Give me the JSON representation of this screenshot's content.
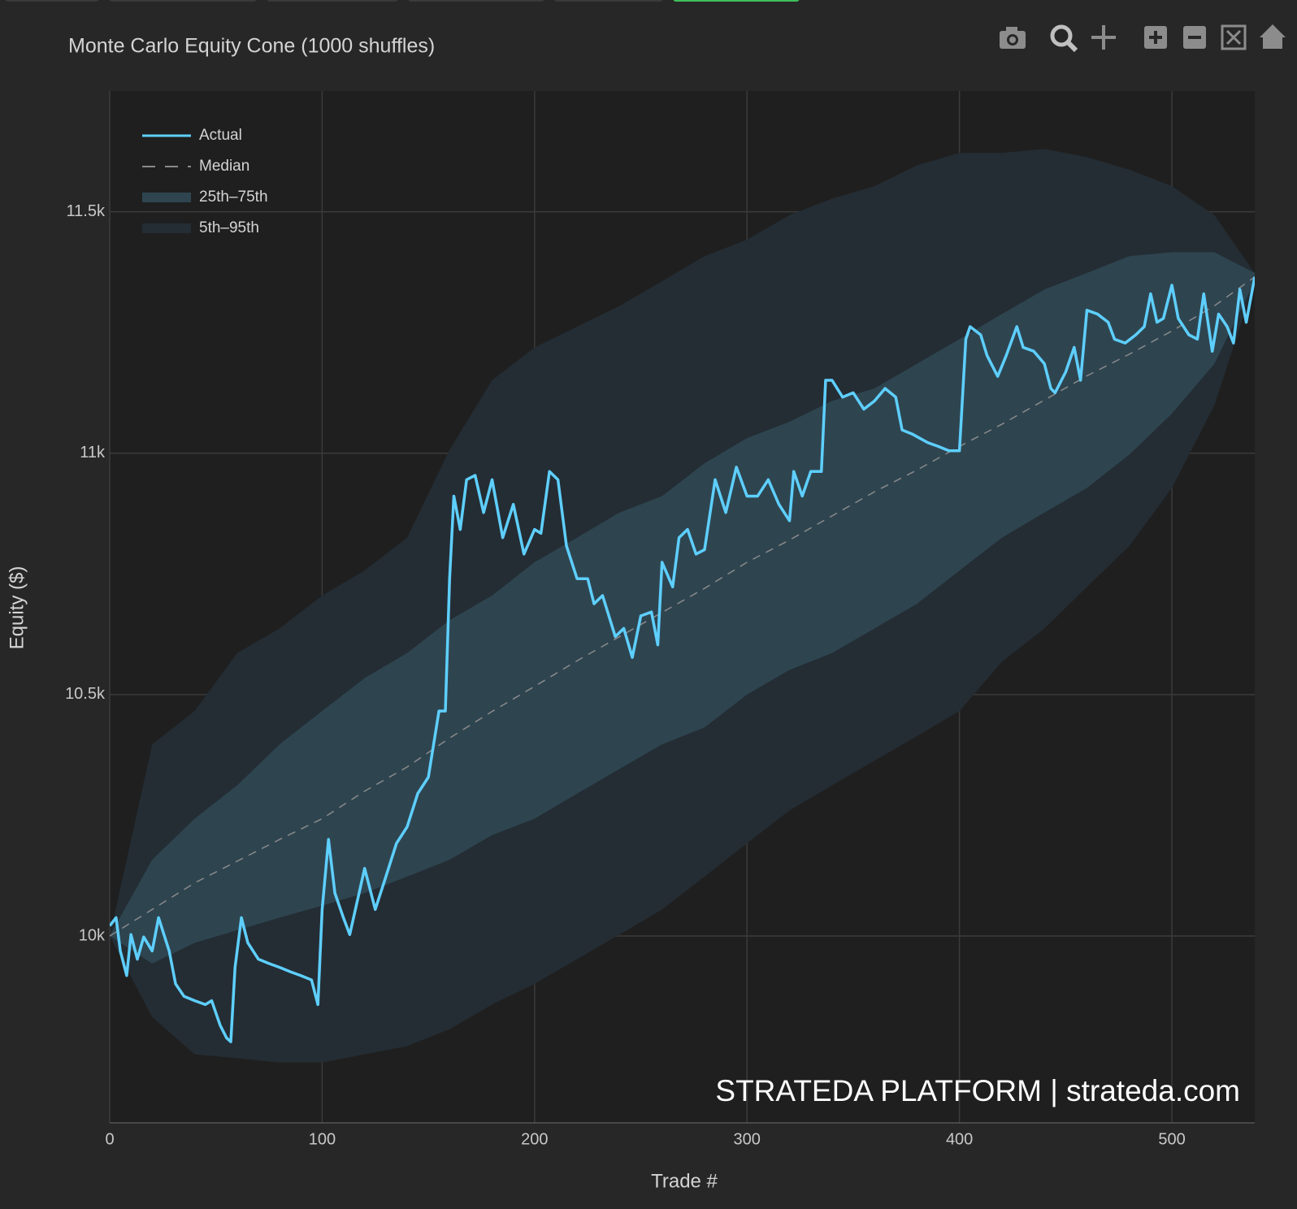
{
  "chart_data": {
    "type": "line",
    "title": "Monte Carlo Equity Cone (1000 shuffles)",
    "x_label": "Trade #",
    "y_label": "Equity ($)",
    "annotation": "STRATEDA PLATFORM | strateda.com",
    "xlim": [
      0,
      539
    ],
    "ylim": [
      9613,
      11750
    ],
    "xticks": [
      0,
      100,
      200,
      300,
      400,
      500
    ],
    "yticks": [
      {
        "value": 10000,
        "label": "10k"
      },
      {
        "value": 10500,
        "label": "10.5k"
      },
      {
        "value": 11000,
        "label": "11k"
      },
      {
        "value": 11500,
        "label": "11.5k"
      }
    ],
    "grid": true,
    "legend": "top-left",
    "series": [
      {
        "name": "Actual",
        "color": "#5ecfff",
        "dash": false,
        "x": [
          0,
          3,
          5,
          8,
          10,
          13,
          16,
          20,
          23,
          28,
          31,
          35,
          40,
          45,
          48,
          52,
          55,
          57,
          59,
          62,
          65,
          70,
          75,
          80,
          85,
          90,
          95,
          98,
          100,
          103,
          106,
          110,
          113,
          120,
          125,
          130,
          135,
          140,
          145,
          150,
          155,
          158,
          160,
          162,
          165,
          168,
          172,
          176,
          180,
          185,
          190,
          195,
          200,
          203,
          207,
          211,
          215,
          220,
          225,
          228,
          232,
          238,
          242,
          246,
          250,
          255,
          258,
          260,
          265,
          268,
          272,
          276,
          280,
          285,
          290,
          295,
          300,
          305,
          310,
          315,
          320,
          322,
          326,
          330,
          335,
          337,
          340,
          345,
          350,
          355,
          360,
          365,
          370,
          373,
          378,
          385,
          390,
          395,
          398,
          400,
          403,
          405,
          410,
          413,
          418,
          422,
          427,
          430,
          435,
          440,
          443,
          445,
          450,
          454,
          457,
          460,
          465,
          470,
          473,
          478,
          483,
          487,
          490,
          493,
          496,
          500,
          503,
          508,
          512,
          515,
          519,
          522,
          526,
          529,
          532,
          535,
          539
        ],
        "values": [
          10021,
          10038,
          9969,
          9918,
          10003,
          9952,
          9998,
          9969,
          10038,
          9969,
          9901,
          9875,
          9866,
          9858,
          9866,
          9815,
          9789,
          9781,
          9935,
          10038,
          9986,
          9952,
          9943,
          9935,
          9926,
          9918,
          9909,
          9858,
          10055,
          10200,
          10089,
          10038,
          10003,
          10140,
          10055,
          10123,
          10192,
          10226,
          10295,
          10329,
          10466,
          10466,
          10740,
          10911,
          10842,
          10945,
          10954,
          10877,
          10945,
          10825,
          10894,
          10791,
          10842,
          10834,
          10962,
          10945,
          10808,
          10740,
          10740,
          10688,
          10705,
          10620,
          10637,
          10577,
          10663,
          10671,
          10603,
          10774,
          10723,
          10825,
          10842,
          10791,
          10800,
          10945,
          10877,
          10971,
          10911,
          10911,
          10945,
          10894,
          10860,
          10962,
          10911,
          10962,
          10962,
          11151,
          11151,
          11116,
          11125,
          11091,
          11108,
          11134,
          11116,
          11048,
          11039,
          11022,
          11014,
          11005,
          11005,
          11005,
          11236,
          11262,
          11245,
          11202,
          11159,
          11202,
          11262,
          11219,
          11211,
          11185,
          11134,
          11125,
          11168,
          11219,
          11151,
          11296,
          11288,
          11271,
          11236,
          11228,
          11245,
          11262,
          11330,
          11271,
          11279,
          11348,
          11279,
          11245,
          11236,
          11330,
          11211,
          11288,
          11262,
          11228,
          11339,
          11271,
          11365
        ]
      },
      {
        "name": "Median",
        "color": "#8a8a8a",
        "dash": true,
        "x": [
          0,
          20,
          40,
          60,
          80,
          100,
          120,
          140,
          160,
          180,
          200,
          220,
          240,
          260,
          280,
          300,
          320,
          340,
          360,
          380,
          400,
          420,
          440,
          460,
          480,
          500,
          520,
          539
        ],
        "values": [
          10000,
          10055,
          10110,
          10155,
          10200,
          10243,
          10300,
          10350,
          10410,
          10465,
          10517,
          10570,
          10620,
          10670,
          10720,
          10774,
          10820,
          10870,
          10920,
          10965,
          11014,
          11060,
          11110,
          11160,
          11205,
          11253,
          11305,
          11365
        ]
      }
    ],
    "bands": [
      {
        "name": "25th–75th",
        "color": "#2e4550",
        "x": [
          0,
          20,
          40,
          60,
          80,
          100,
          120,
          140,
          160,
          180,
          200,
          220,
          240,
          260,
          280,
          300,
          320,
          340,
          360,
          380,
          400,
          420,
          440,
          460,
          480,
          500,
          520,
          539
        ],
        "lower": [
          10000,
          9943,
          9986,
          10012,
          10038,
          10063,
          10089,
          10123,
          10158,
          10209,
          10243,
          10295,
          10346,
          10397,
          10432,
          10500,
          10551,
          10586,
          10637,
          10688,
          10757,
          10825,
          10877,
          10928,
          10997,
          11082,
          11185,
          11356
        ],
        "upper": [
          10000,
          10158,
          10243,
          10312,
          10397,
          10466,
          10534,
          10586,
          10654,
          10705,
          10774,
          10825,
          10877,
          10911,
          10979,
          11031,
          11065,
          11108,
          11134,
          11185,
          11236,
          11288,
          11339,
          11373,
          11408,
          11416,
          11416,
          11373
        ]
      },
      {
        "name": "5th–95th",
        "color": "#242d34",
        "x": [
          0,
          20,
          40,
          60,
          80,
          100,
          120,
          140,
          160,
          180,
          200,
          220,
          240,
          260,
          280,
          300,
          320,
          340,
          360,
          380,
          400,
          420,
          440,
          460,
          480,
          500,
          520,
          539
        ],
        "lower": [
          10000,
          9832,
          9755,
          9747,
          9738,
          9738,
          9755,
          9772,
          9807,
          9858,
          9901,
          9952,
          10003,
          10055,
          10123,
          10192,
          10260,
          10312,
          10363,
          10414,
          10466,
          10568,
          10637,
          10723,
          10808,
          10928,
          11099,
          11356
        ],
        "upper": [
          10000,
          10397,
          10466,
          10586,
          10637,
          10705,
          10757,
          10825,
          11007,
          11151,
          11219,
          11262,
          11305,
          11356,
          11408,
          11442,
          11493,
          11527,
          11553,
          11596,
          11622,
          11622,
          11630,
          11613,
          11587,
          11553,
          11493,
          11373
        ]
      }
    ]
  }
}
